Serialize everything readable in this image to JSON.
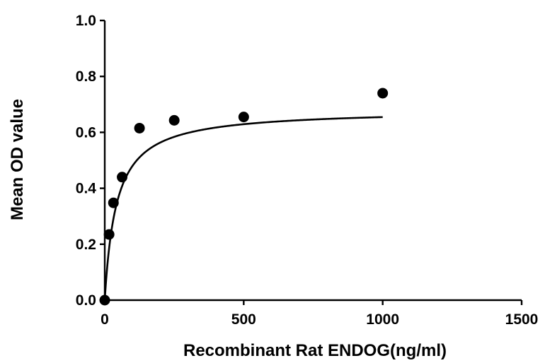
{
  "chart_data": {
    "type": "scatter",
    "xlabel": "Recombinant Rat ENDOG(ng/ml)",
    "ylabel": "Mean OD value",
    "xlim": [
      0,
      1500
    ],
    "ylim": [
      0,
      1.0
    ],
    "x_ticks": [
      0,
      500,
      1000,
      1500
    ],
    "x_tick_labels": [
      "0",
      "500",
      "1000",
      "1500"
    ],
    "y_ticks": [
      0,
      0.2,
      0.4,
      0.6,
      0.8,
      1.0
    ],
    "y_tick_labels": [
      "0.0",
      "0.2",
      "0.4",
      "0.6",
      "0.8",
      "1.0"
    ],
    "grid": false,
    "legend": "none",
    "series": [
      {
        "points": [
          {
            "x": 0,
            "y": 0.0
          },
          {
            "x": 15.6,
            "y": 0.235
          },
          {
            "x": 31.25,
            "y": 0.348
          },
          {
            "x": 62.5,
            "y": 0.44
          },
          {
            "x": 125,
            "y": 0.615
          },
          {
            "x": 250,
            "y": 0.643
          },
          {
            "x": 500,
            "y": 0.655
          },
          {
            "x": 1000,
            "y": 0.74
          }
        ]
      }
    ],
    "fit_curve": {
      "model": "one-site saturation",
      "x_range": [
        0,
        1000
      ],
      "ymax": 0.682,
      "half_max_x": 42
    },
    "colors": {
      "points": "#000000",
      "curve": "#000000",
      "axes": "#000000"
    }
  }
}
